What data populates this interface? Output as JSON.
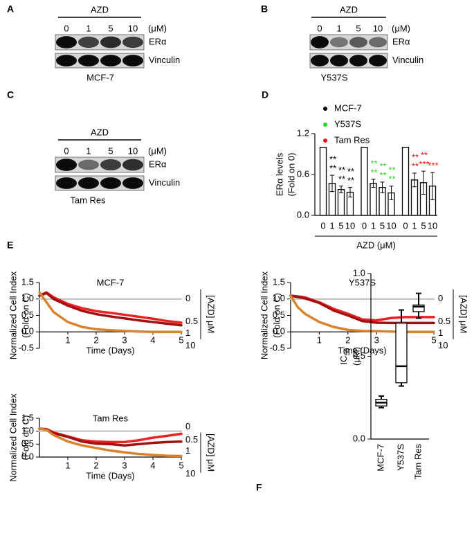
{
  "blots": [
    {
      "label": "A",
      "treatment": "AZD",
      "doses": [
        "0",
        "1",
        "5",
        "10"
      ],
      "unit": "(μM)",
      "proteins": [
        "ERα",
        "Vinculin"
      ],
      "cell_line": "MCF-7"
    },
    {
      "label": "B",
      "treatment": "AZD",
      "doses": [
        "0",
        "1",
        "5",
        "10"
      ],
      "unit": "(μM)",
      "proteins": [
        "ERα",
        "Vinculin"
      ],
      "cell_line": "Y537S"
    },
    {
      "label": "C",
      "treatment": "AZD",
      "doses": [
        "0",
        "1",
        "5",
        "10"
      ],
      "unit": "(μM)",
      "proteins": [
        "ERα",
        "Vinculin"
      ],
      "cell_line": "Tam Res"
    }
  ],
  "chart_data": [
    {
      "type": "bar",
      "panel": "D",
      "ylabel": "ERα levels",
      "ylabel2": "(Fold on 0)",
      "xlabel": "AZD (μM)",
      "categories": [
        "0",
        "1",
        "5",
        "10"
      ],
      "series": [
        {
          "name": "MCF-7",
          "color": "#000000",
          "values": [
            1,
            0.47,
            0.38,
            0.34
          ],
          "errors": [
            0,
            0.12,
            0.05,
            0.07
          ],
          "annotations": [
            [],
            [
              "**",
              "**"
            ],
            [
              "**",
              "**"
            ],
            [
              "**",
              "**"
            ]
          ]
        },
        {
          "name": "Y537S",
          "color": "#22dd22",
          "values": [
            1,
            0.47,
            0.41,
            0.33
          ],
          "errors": [
            0,
            0.06,
            0.08,
            0.1
          ],
          "annotations": [
            [],
            [
              "**",
              "**"
            ],
            [
              "**",
              "**"
            ],
            [
              "**",
              "**"
            ]
          ]
        },
        {
          "name": "Tam Res",
          "color": "#ee1111",
          "values": [
            1,
            0.52,
            0.48,
            0.43
          ],
          "errors": [
            0,
            0.1,
            0.17,
            0.2
          ],
          "annotations": [
            [],
            [
              "**",
              "**"
            ],
            [
              "***",
              "**"
            ],
            [
              "***"
            ]
          ]
        }
      ],
      "ylim": [
        0,
        1.2
      ],
      "yticks": [
        {
          "value": 0,
          "label": "0.0"
        },
        0.6,
        1.2
      ]
    },
    {
      "type": "line",
      "panel": "E",
      "title": "MCF-7",
      "ylabel": "Normalized Cell Index",
      "ylabel2": "(Fold on C)",
      "xlabel": "Time (Days)",
      "legend_title": "[AZD] μM",
      "x": [
        0,
        0.25,
        0.5,
        1,
        1.5,
        2,
        2.5,
        3,
        3.5,
        4,
        4.5,
        5
      ],
      "series": [
        {
          "name": "0",
          "color": "#c8c8c8",
          "values": [
            1,
            1,
            1,
            1,
            1,
            1,
            1,
            1,
            1,
            1,
            1,
            1
          ]
        },
        {
          "name": "0.5",
          "color": "#ee2222",
          "values": [
            1.1,
            1.2,
            1.05,
            0.85,
            0.72,
            0.63,
            0.58,
            0.52,
            0.46,
            0.4,
            0.33,
            0.28
          ]
        },
        {
          "name": "1",
          "color": "#a01010",
          "values": [
            1.1,
            1.18,
            1.0,
            0.8,
            0.64,
            0.54,
            0.47,
            0.41,
            0.35,
            0.3,
            0.25,
            0.2
          ]
        },
        {
          "name": "10",
          "color": "#d9822b",
          "values": [
            1.2,
            0.9,
            0.6,
            0.3,
            0.15,
            0.08,
            0.05,
            0.03,
            0.01,
            0,
            0,
            0
          ]
        }
      ],
      "xlim": [
        0,
        5
      ],
      "xticks": [
        1,
        2,
        3,
        4,
        5
      ],
      "ylim": [
        -0.5,
        1.5
      ],
      "yticks": [
        -0.5,
        {
          "value": 0,
          "label": "0.0"
        },
        0.5,
        {
          "value": 1,
          "label": "1.0"
        },
        1.5
      ]
    },
    {
      "type": "line",
      "title": "Y537S",
      "ylabel": "Normalized Cell Index",
      "ylabel2": "(Fold on C)",
      "xlabel": "Time (Days)",
      "legend_title": "[AZD] μM",
      "x": [
        0,
        0.25,
        0.5,
        1,
        1.5,
        2,
        2.5,
        3,
        3.5,
        4,
        4.5,
        5
      ],
      "series": [
        {
          "name": "0",
          "color": "#c8c8c8",
          "values": [
            1,
            1,
            1,
            1,
            1,
            1,
            1,
            1,
            1,
            1,
            1,
            1
          ]
        },
        {
          "name": "0.5",
          "color": "#ee2222",
          "values": [
            1.1,
            1.08,
            1.05,
            0.9,
            0.7,
            0.55,
            0.38,
            0.35,
            0.42,
            0.45,
            0.45,
            0.45
          ]
        },
        {
          "name": "1",
          "color": "#a01010",
          "values": [
            1.1,
            1.06,
            1.02,
            0.88,
            0.65,
            0.5,
            0.33,
            0.28,
            0.27,
            0.27,
            0.27,
            0.27
          ]
        },
        {
          "name": "10",
          "color": "#d9822b",
          "values": [
            1.1,
            0.75,
            0.55,
            0.3,
            0.15,
            0.06,
            0.03,
            0.02,
            0.01,
            0,
            0,
            0
          ]
        }
      ],
      "xlim": [
        0,
        5
      ],
      "xticks": [
        1,
        2,
        3,
        4,
        5
      ],
      "ylim": [
        -0.5,
        1.5
      ],
      "yticks": [
        -0.5,
        {
          "value": 0,
          "label": "0.0"
        },
        0.5,
        {
          "value": 1,
          "label": "1.0"
        },
        1.5
      ]
    },
    {
      "type": "line",
      "title": "Tam Res",
      "ylabel": "Normalized Cell Index",
      "ylabel2": "(Fold on C)",
      "xlabel": "Time (Days)",
      "legend_title": "[AZD] μM",
      "x": [
        0,
        0.25,
        0.5,
        1,
        1.5,
        2,
        2.5,
        3,
        3.5,
        4,
        4.5,
        5
      ],
      "series": [
        {
          "name": "0",
          "color": "#c8c8c8",
          "values": [
            1,
            1,
            1,
            1,
            1,
            1,
            1,
            1,
            1,
            1,
            1,
            1
          ]
        },
        {
          "name": "0.5",
          "color": "#ee2222",
          "values": [
            1.1,
            1.08,
            0.95,
            0.8,
            0.65,
            0.6,
            0.58,
            0.58,
            0.65,
            0.75,
            0.82,
            0.9
          ]
        },
        {
          "name": "1",
          "color": "#a01010",
          "values": [
            1.1,
            1.07,
            0.92,
            0.78,
            0.6,
            0.52,
            0.5,
            0.45,
            0.5,
            0.55,
            0.58,
            0.6
          ]
        },
        {
          "name": "10",
          "color": "#d9822b",
          "values": [
            1.1,
            1.05,
            0.85,
            0.6,
            0.45,
            0.35,
            0.25,
            0.18,
            0.12,
            0.08,
            0.05,
            0.04
          ]
        }
      ],
      "xlim": [
        0,
        5
      ],
      "xticks": [
        1,
        2,
        3,
        4,
        5
      ],
      "ylim": [
        0,
        1.5
      ],
      "yticks": [
        {
          "value": 0,
          "label": "0.0"
        },
        0.5,
        {
          "value": 1,
          "label": "1.0"
        },
        1.5
      ]
    },
    {
      "type": "box",
      "panel": "F",
      "ylabel": "IC",
      "ylabel_sub": "50",
      "ylabel_unit": "(μM)",
      "categories": [
        "MCF-7",
        "Y537S",
        "Tam Res"
      ],
      "boxes": [
        {
          "min": 0.19,
          "q1": 0.2,
          "median": 0.22,
          "q3": 0.24,
          "max": 0.26
        },
        {
          "min": 0.32,
          "q1": 0.34,
          "median": 0.44,
          "q3": 0.7,
          "max": 0.78
        },
        {
          "min": 0.73,
          "q1": 0.77,
          "median": 0.8,
          "q3": 0.81,
          "max": 0.88
        }
      ],
      "ylim": [
        0,
        1
      ],
      "yticks": [
        {
          "value": 0,
          "label": "0.0"
        },
        0.5,
        {
          "value": 1,
          "label": "1.0"
        }
      ]
    }
  ]
}
